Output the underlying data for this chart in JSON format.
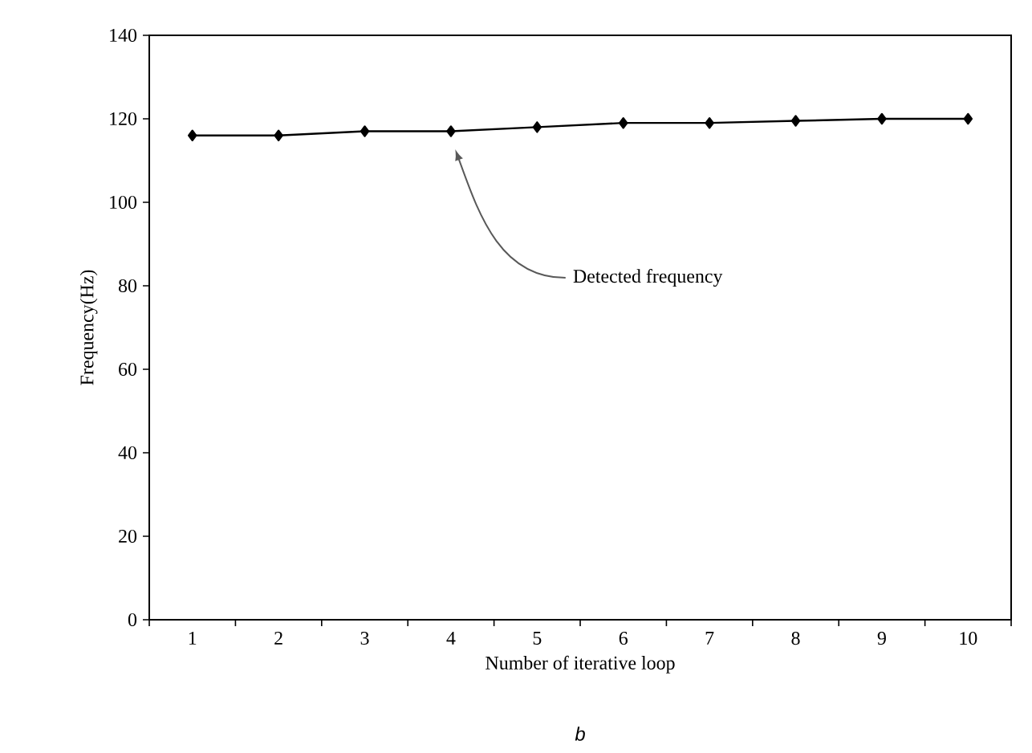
{
  "chart_data": {
    "type": "line",
    "xlabel": "Number of iterative loop",
    "ylabel": "Frequency(Hz)",
    "categories": [
      "1",
      "2",
      "3",
      "4",
      "5",
      "6",
      "7",
      "8",
      "9",
      "10"
    ],
    "series": [
      {
        "color": "#000000",
        "values": [
          116,
          116,
          117,
          117,
          118,
          119,
          119,
          119.5,
          120,
          120
        ]
      }
    ],
    "ylim": [
      0,
      140
    ],
    "yticks": [
      0,
      20,
      40,
      60,
      80,
      100,
      120,
      140
    ],
    "marker": "diamond",
    "line_style": "solid",
    "grid": false,
    "annotations": [
      "Detected frequency",
      "b"
    ]
  }
}
